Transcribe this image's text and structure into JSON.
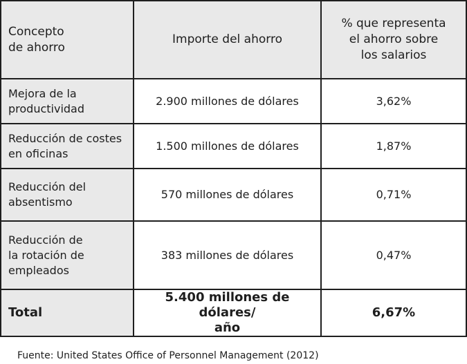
{
  "table": {
    "headers": {
      "concept": "Concepto\nde ahorro",
      "amount": "Importe del ahorro",
      "percent": "% que representa\nel ahorro sobre\nlos salarios"
    },
    "rows": [
      {
        "concept": "Mejora de la\nproductividad",
        "amount": "2.900 millones de dólares",
        "percent": "3,62%"
      },
      {
        "concept": "Reducción de costes\nen oficinas",
        "amount": "1.500 millones de dólares",
        "percent": "1,87%"
      },
      {
        "concept": "Reducción del\nabsentismo",
        "amount": "570 millones de dólares",
        "percent": "0,71%"
      },
      {
        "concept": "Reducción de\nla rotación de\nempleados",
        "amount": "383 millones de dólares",
        "percent": "0,47%"
      }
    ],
    "total": {
      "concept": "Total",
      "amount": "5.400 millones de dólares/\naño",
      "percent": "6,67%"
    }
  },
  "source": "Fuente: United States Office of Personnel Management (2012)"
}
